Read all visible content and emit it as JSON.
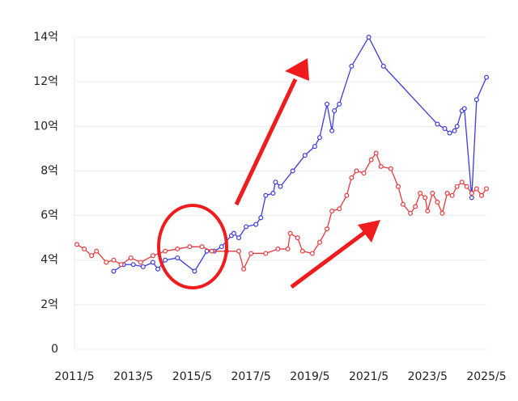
{
  "chart_data": {
    "type": "line",
    "xlim": [
      "2011/5",
      "2025/5"
    ],
    "xticks": [
      "2011/5",
      "2013/5",
      "2015/5",
      "2017/5",
      "2019/5",
      "2021/5",
      "2023/5",
      "2025/5"
    ],
    "ylim": [
      0,
      14
    ],
    "yticks": [
      0,
      {
        "value": 2,
        "label": "2억"
      },
      {
        "value": 4,
        "label": "4억"
      },
      {
        "value": 6,
        "label": "6억"
      },
      {
        "value": 8,
        "label": "8억"
      },
      {
        "value": 10,
        "label": "10억"
      },
      {
        "value": 12,
        "label": "12억"
      },
      {
        "value": 14,
        "label": "14억"
      }
    ],
    "grid": true,
    "series": [
      {
        "color": "#3b3bdc",
        "x": [
          "2012/9",
          "2013/1",
          "2013/5",
          "2013/9",
          "2014/1",
          "2014/3",
          "2014/6",
          "2014/11",
          "2015/6",
          "2015/11",
          "2016/2",
          "2016/5",
          "2016/9",
          "2016/10",
          "2016/12",
          "2017/3",
          "2017/7",
          "2017/9",
          "2017/11",
          "2018/2",
          "2018/3",
          "2018/5",
          "2018/10",
          "2019/3",
          "2019/7",
          "2019/9",
          "2019/12",
          "2020/2",
          "2020/3",
          "2020/5",
          "2020/10",
          "2021/5",
          "2021/11",
          "2023/9",
          "2023/12",
          "2024/2",
          "2024/4",
          "2024/5",
          "2024/7",
          "2024/8",
          "2024/11",
          "2025/1",
          "2025/5"
        ],
        "values": [
          3.5,
          3.8,
          3.8,
          3.7,
          3.9,
          3.6,
          4.0,
          4.1,
          3.5,
          4.4,
          4.4,
          4.6,
          5.1,
          5.2,
          5.0,
          5.5,
          5.6,
          5.9,
          6.9,
          7.0,
          7.5,
          7.3,
          8.0,
          8.7,
          9.1,
          9.5,
          11.0,
          9.8,
          10.7,
          11.0,
          12.7,
          14.0,
          12.7,
          10.1,
          9.9,
          9.7,
          9.8,
          10.0,
          10.7,
          10.8,
          6.8,
          11.2,
          12.2
        ]
      },
      {
        "color": "#e8393e",
        "x": [
          "2011/6",
          "2011/9",
          "2011/12",
          "2012/2",
          "2012/6",
          "2012/9",
          "2012/12",
          "2013/4",
          "2013/8",
          "2014/1",
          "2014/6",
          "2014/11",
          "2015/4",
          "2015/9",
          "2016/1",
          "2016/7",
          "2016/12",
          "2017/2",
          "2017/5",
          "2017/11",
          "2018/4",
          "2018/8",
          "2018/9",
          "2018/12",
          "2019/2",
          "2019/6",
          "2019/9",
          "2019/12",
          "2020/2",
          "2020/5",
          "2020/8",
          "2020/10",
          "2020/12",
          "2021/3",
          "2021/6",
          "2021/8",
          "2021/10",
          "2022/2",
          "2022/5",
          "2022/7",
          "2022/10",
          "2022/12",
          "2023/2",
          "2023/4",
          "2023/5",
          "2023/7",
          "2023/9",
          "2023/11",
          "2024/1",
          "2024/3",
          "2024/5",
          "2024/7",
          "2024/9",
          "2024/11",
          "2025/1",
          "2025/3",
          "2025/5"
        ],
        "values": [
          4.7,
          4.5,
          4.2,
          4.4,
          3.9,
          4.0,
          3.8,
          4.1,
          3.9,
          4.2,
          4.4,
          4.5,
          4.6,
          4.6,
          4.4,
          4.4,
          4.4,
          3.6,
          4.3,
          4.3,
          4.5,
          4.5,
          5.2,
          5.0,
          4.4,
          4.3,
          4.8,
          5.4,
          6.2,
          6.3,
          6.9,
          7.7,
          8.0,
          7.9,
          8.5,
          8.8,
          8.2,
          8.1,
          7.3,
          6.5,
          6.1,
          6.4,
          7.0,
          6.8,
          6.2,
          7.0,
          6.6,
          6.1,
          7.0,
          6.9,
          7.3,
          7.5,
          7.3,
          7.0,
          7.2,
          6.9,
          7.2
        ]
      }
    ]
  }
}
